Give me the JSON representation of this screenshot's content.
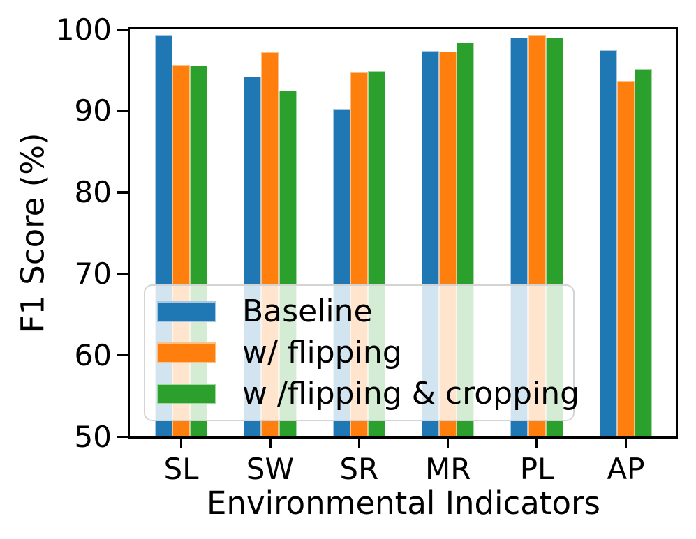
{
  "chart_data": {
    "type": "bar",
    "title": "",
    "xlabel": "Environmental Indicators",
    "ylabel": "F1 Score (%)",
    "ylim": [
      50,
      100
    ],
    "yticks": [
      50,
      60,
      70,
      80,
      90,
      100
    ],
    "categories": [
      "SL",
      "SW",
      "SR",
      "MR",
      "PL",
      "AP"
    ],
    "series": [
      {
        "key": "baseline",
        "name": "Baseline",
        "color": "#1f77b4",
        "edge_color": "#aac7e2",
        "values": [
          99.4,
          94.2,
          90.2,
          97.4,
          99.0,
          97.5
        ]
      },
      {
        "key": "flipping",
        "name": "w/ flipping",
        "color": "#ff7f0e",
        "edge_color": "#fdc086",
        "values": [
          95.7,
          97.2,
          94.8,
          97.3,
          99.4,
          93.7
        ]
      },
      {
        "key": "flipping-cropping",
        "name": "w /flipping & cropping",
        "color": "#2ca02c",
        "edge_color": "#a4d6a0",
        "values": [
          95.6,
          92.5,
          94.9,
          98.4,
          99.0,
          95.2
        ]
      }
    ],
    "legend": {
      "position": "lower-left",
      "entries": [
        "Baseline",
        "w/ flipping",
        "w /flipping & cropping"
      ]
    },
    "grid": false,
    "axis_color": "#000000",
    "background_color": "#ffffff",
    "legend_border_color": "#d4d4d4"
  }
}
